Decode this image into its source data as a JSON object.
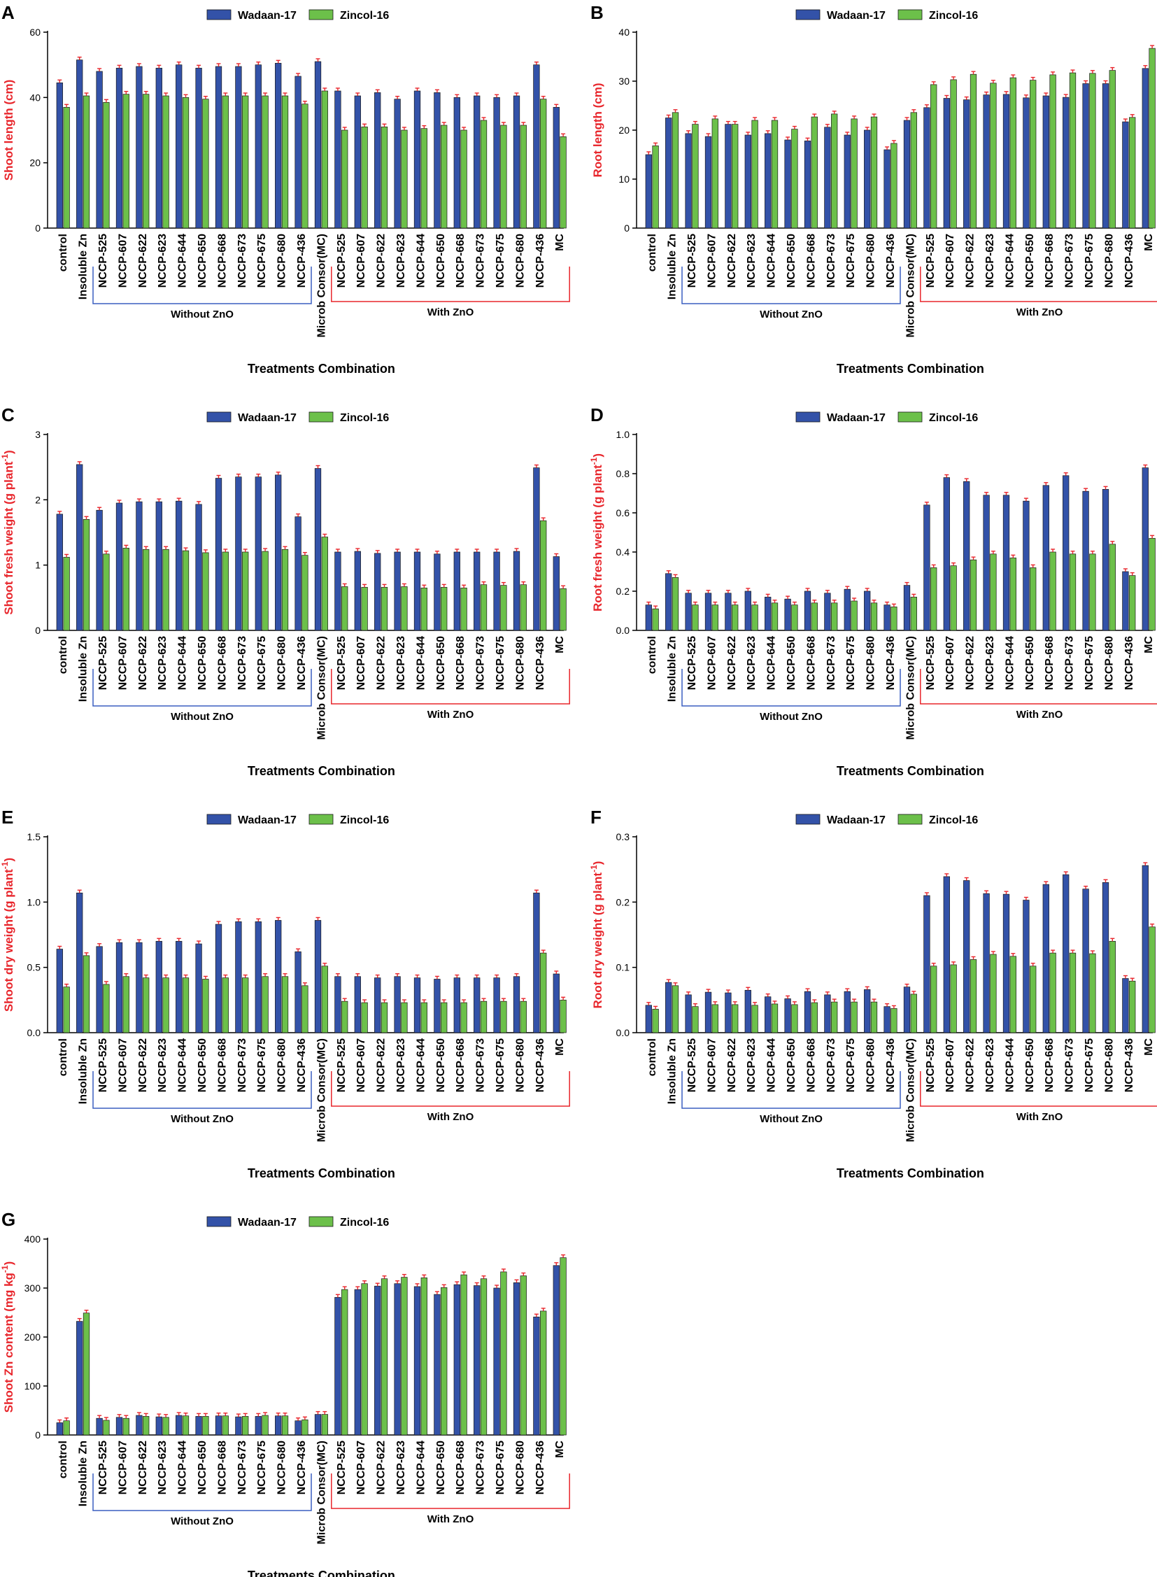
{
  "colors": {
    "series1": "#3352a8",
    "series2": "#6cc04a",
    "error": "#e8262c",
    "axis_label": "#e8262c",
    "without_bracket": "#3a5fc0",
    "with_bracket": "#e8262c"
  },
  "legend": [
    "Wadaan-17",
    "Zincol-16"
  ],
  "group_labels": {
    "without": "Without ZnO",
    "with": "With ZnO"
  },
  "x_axis_title": "Treatments Combination",
  "chart_data": [
    {
      "id": "A",
      "type": "bar",
      "ylabel": "Shoot length (cm)",
      "xlabel": "Treatments Combination",
      "ylim": [
        0,
        60
      ],
      "yticks": [
        "0",
        "20",
        "40",
        "60"
      ],
      "categories": [
        "control",
        "Insoluble Zn",
        "NCCP-525",
        "NCCP-607",
        "NCCP-622",
        "NCCP-623",
        "NCCP-644",
        "NCCP-650",
        "NCCP-668",
        "NCCP-673",
        "NCCP-675",
        "NCCP-680",
        "NCCP-436",
        "Microb Consor(MC)",
        "NCCP-525",
        "NCCP-607",
        "NCCP-622",
        "NCCP-623",
        "NCCP-644",
        "NCCP-650",
        "NCCP-668",
        "NCCP-673",
        "NCCP-675",
        "NCCP-680",
        "NCCP-436",
        "MC"
      ],
      "series": [
        {
          "name": "Wadaan-17",
          "values": [
            44.5,
            51.5,
            48,
            49,
            49.5,
            49,
            50,
            49,
            49.5,
            49.5,
            50,
            50.5,
            46.5,
            51,
            42,
            40.5,
            41.5,
            39.5,
            42,
            41.5,
            40,
            40.5,
            40,
            40.5,
            50,
            37
          ]
        },
        {
          "name": "Zincol-16",
          "values": [
            37,
            40.5,
            38.5,
            41,
            41,
            40.5,
            40,
            39.5,
            40.5,
            40.5,
            40.5,
            40.5,
            38,
            42,
            30,
            31,
            31,
            30,
            30.5,
            31.5,
            30,
            33,
            31.5,
            31.5,
            39.5,
            28
          ]
        }
      ]
    },
    {
      "id": "B",
      "type": "bar",
      "ylabel": "Root length (cm)",
      "xlabel": "Treatments Combination",
      "ylim": [
        0,
        40
      ],
      "yticks": [
        "0",
        "10",
        "20",
        "30",
        "40"
      ],
      "categories": [
        "control",
        "Insoluble Zn",
        "NCCP-525",
        "NCCP-607",
        "NCCP-622",
        "NCCP-623",
        "NCCP-644",
        "NCCP-650",
        "NCCP-668",
        "NCCP-673",
        "NCCP-675",
        "NCCP-680",
        "NCCP-436",
        "Microb Consor(MC)",
        "NCCP-525",
        "NCCP-607",
        "NCCP-622",
        "NCCP-623",
        "NCCP-644",
        "NCCP-650",
        "NCCP-668",
        "NCCP-673",
        "NCCP-675",
        "NCCP-680",
        "NCCP-436",
        "MC"
      ],
      "series": [
        {
          "name": "Wadaan-17",
          "values": [
            15,
            22.5,
            19.3,
            18.7,
            21.2,
            19,
            19.3,
            18,
            17.8,
            20.6,
            19,
            20,
            16,
            22,
            24.6,
            26.5,
            26.2,
            27.2,
            27.3,
            26.6,
            27,
            26.7,
            29.5,
            29.5,
            21.7,
            32.6
          ]
        },
        {
          "name": "Zincol-16",
          "values": [
            16.8,
            23.6,
            21.2,
            22.3,
            21.2,
            22,
            22,
            20.2,
            22.7,
            23.3,
            22.3,
            22.7,
            17.3,
            23.6,
            29.3,
            30.3,
            31.4,
            29.6,
            30.7,
            30.2,
            31.3,
            31.7,
            31.6,
            32.2,
            22.6,
            36.7
          ]
        }
      ]
    },
    {
      "id": "C",
      "type": "bar",
      "ylabel": "Shoot fresh weight (g plant",
      "ylabel_sup": "-1",
      "ylabel_end": ")",
      "xlabel": "Treatments Combination",
      "ylim": [
        0,
        3
      ],
      "yticks": [
        "0",
        "1",
        "2",
        "3"
      ],
      "categories": [
        "control",
        "Insoluble Zn",
        "NCCP-525",
        "NCCP-607",
        "NCCP-622",
        "NCCP-623",
        "NCCP-644",
        "NCCP-650",
        "NCCP-668",
        "NCCP-673",
        "NCCP-675",
        "NCCP-680",
        "NCCP-436",
        "Microb Consor(MC)",
        "NCCP-525",
        "NCCP-607",
        "NCCP-622",
        "NCCP-623",
        "NCCP-644",
        "NCCP-650",
        "NCCP-668",
        "NCCP-673",
        "NCCP-675",
        "NCCP-680",
        "NCCP-436",
        "MC"
      ],
      "series": [
        {
          "name": "Wadaan-17",
          "values": [
            1.78,
            2.54,
            1.84,
            1.95,
            1.97,
            1.97,
            1.98,
            1.93,
            2.33,
            2.35,
            2.35,
            2.38,
            1.74,
            2.48,
            1.2,
            1.21,
            1.18,
            1.2,
            1.2,
            1.17,
            1.2,
            1.2,
            1.2,
            1.21,
            2.49,
            1.13
          ]
        },
        {
          "name": "Zincol-16",
          "values": [
            1.12,
            1.7,
            1.17,
            1.26,
            1.24,
            1.24,
            1.22,
            1.19,
            1.2,
            1.2,
            1.21,
            1.24,
            1.15,
            1.43,
            0.67,
            0.66,
            0.66,
            0.67,
            0.65,
            0.66,
            0.65,
            0.7,
            0.69,
            0.7,
            1.68,
            0.64
          ]
        }
      ]
    },
    {
      "id": "D",
      "type": "bar",
      "ylabel": "Root fresh weight (g plant",
      "ylabel_sup": "-1",
      "ylabel_end": ")",
      "xlabel": "Treatments Combination",
      "ylim": [
        0,
        1.0
      ],
      "yticks": [
        "0.0",
        "0.2",
        "0.4",
        "0.6",
        "0.8",
        "1.0"
      ],
      "categories": [
        "control",
        "Insoluble Zn",
        "NCCP-525",
        "NCCP-607",
        "NCCP-622",
        "NCCP-623",
        "NCCP-644",
        "NCCP-650",
        "NCCP-668",
        "NCCP-673",
        "NCCP-675",
        "NCCP-680",
        "NCCP-436",
        "Microb Consor(MC)",
        "NCCP-525",
        "NCCP-607",
        "NCCP-622",
        "NCCP-623",
        "NCCP-644",
        "NCCP-650",
        "NCCP-668",
        "NCCP-673",
        "NCCP-675",
        "NCCP-680",
        "NCCP-436",
        "MC"
      ],
      "series": [
        {
          "name": "Wadaan-17",
          "values": [
            0.13,
            0.29,
            0.19,
            0.19,
            0.19,
            0.2,
            0.17,
            0.16,
            0.2,
            0.19,
            0.21,
            0.2,
            0.13,
            0.23,
            0.64,
            0.78,
            0.76,
            0.69,
            0.69,
            0.66,
            0.74,
            0.79,
            0.71,
            0.72,
            0.3,
            0.83
          ]
        },
        {
          "name": "Zincol-16",
          "values": [
            0.11,
            0.27,
            0.13,
            0.13,
            0.13,
            0.13,
            0.14,
            0.13,
            0.14,
            0.14,
            0.15,
            0.14,
            0.12,
            0.17,
            0.32,
            0.33,
            0.36,
            0.39,
            0.37,
            0.32,
            0.4,
            0.39,
            0.39,
            0.44,
            0.28,
            0.47
          ]
        }
      ]
    },
    {
      "id": "E",
      "type": "bar",
      "ylabel": "Shoot dry weight (g plant",
      "ylabel_sup": "-1",
      "ylabel_end": ")",
      "xlabel": "Treatments Combination",
      "ylim": [
        0,
        1.5
      ],
      "yticks": [
        "0.0",
        "0.5",
        "1.0",
        "1.5"
      ],
      "categories": [
        "control",
        "Insoluble Zn",
        "NCCP-525",
        "NCCP-607",
        "NCCP-622",
        "NCCP-623",
        "NCCP-644",
        "NCCP-650",
        "NCCP-668",
        "NCCP-673",
        "NCCP-675",
        "NCCP-680",
        "NCCP-436",
        "Microb Consor(MC)",
        "NCCP-525",
        "NCCP-607",
        "NCCP-622",
        "NCCP-623",
        "NCCP-644",
        "NCCP-650",
        "NCCP-668",
        "NCCP-673",
        "NCCP-675",
        "NCCP-680",
        "NCCP-436",
        "MC"
      ],
      "series": [
        {
          "name": "Wadaan-17",
          "values": [
            0.64,
            1.07,
            0.66,
            0.69,
            0.69,
            0.7,
            0.7,
            0.68,
            0.83,
            0.85,
            0.85,
            0.86,
            0.62,
            0.86,
            0.43,
            0.43,
            0.42,
            0.43,
            0.42,
            0.41,
            0.42,
            0.42,
            0.42,
            0.43,
            1.07,
            0.45
          ]
        },
        {
          "name": "Zincol-16",
          "values": [
            0.35,
            0.59,
            0.37,
            0.43,
            0.42,
            0.42,
            0.42,
            0.41,
            0.42,
            0.42,
            0.43,
            0.43,
            0.36,
            0.51,
            0.24,
            0.23,
            0.23,
            0.23,
            0.23,
            0.23,
            0.23,
            0.24,
            0.24,
            0.24,
            0.61,
            0.25
          ]
        }
      ]
    },
    {
      "id": "F",
      "type": "bar",
      "ylabel": "Root dry weight (g plant",
      "ylabel_sup": "-1",
      "ylabel_end": ")",
      "xlabel": "Treatments Combination",
      "ylim": [
        0,
        0.3
      ],
      "yticks": [
        "0.0",
        "0.1",
        "0.2",
        "0.3"
      ],
      "categories": [
        "control",
        "Insoluble Zn",
        "NCCP-525",
        "NCCP-607",
        "NCCP-622",
        "NCCP-623",
        "NCCP-644",
        "NCCP-650",
        "NCCP-668",
        "NCCP-673",
        "NCCP-675",
        "NCCP-680",
        "NCCP-436",
        "Microb Consor(MC)",
        "NCCP-525",
        "NCCP-607",
        "NCCP-622",
        "NCCP-623",
        "NCCP-644",
        "NCCP-650",
        "NCCP-668",
        "NCCP-673",
        "NCCP-675",
        "NCCP-680",
        "NCCP-436",
        "MC"
      ],
      "series": [
        {
          "name": "Wadaan-17",
          "values": [
            0.042,
            0.077,
            0.058,
            0.062,
            0.061,
            0.065,
            0.055,
            0.052,
            0.063,
            0.058,
            0.063,
            0.066,
            0.04,
            0.07,
            0.21,
            0.239,
            0.233,
            0.213,
            0.212,
            0.203,
            0.227,
            0.242,
            0.22,
            0.23,
            0.083,
            0.256
          ]
        },
        {
          "name": "Zincol-16",
          "values": [
            0.036,
            0.072,
            0.04,
            0.043,
            0.043,
            0.042,
            0.044,
            0.043,
            0.046,
            0.047,
            0.047,
            0.047,
            0.037,
            0.059,
            0.102,
            0.104,
            0.112,
            0.12,
            0.117,
            0.102,
            0.122,
            0.122,
            0.121,
            0.14,
            0.079,
            0.162
          ]
        }
      ]
    },
    {
      "id": "G",
      "type": "bar",
      "ylabel": "Shoot Zn content (mg kg",
      "ylabel_sup": "-1",
      "ylabel_end": ")",
      "xlabel": "Treatments Combination",
      "ylim": [
        0,
        400
      ],
      "yticks": [
        "0",
        "100",
        "200",
        "300",
        "400"
      ],
      "categories": [
        "control",
        "Insoluble Zn",
        "NCCP-525",
        "NCCP-607",
        "NCCP-622",
        "NCCP-623",
        "NCCP-644",
        "NCCP-650",
        "NCCP-668",
        "NCCP-673",
        "NCCP-675",
        "NCCP-680",
        "NCCP-436",
        "Microb Consor(MC)",
        "NCCP-525",
        "NCCP-607",
        "NCCP-622",
        "NCCP-623",
        "NCCP-644",
        "NCCP-650",
        "NCCP-668",
        "NCCP-673",
        "NCCP-675",
        "NCCP-680",
        "NCCP-436",
        "MC"
      ],
      "series": [
        {
          "name": "Wadaan-17",
          "values": [
            25,
            232,
            34,
            36,
            40,
            37,
            40,
            38,
            39,
            37,
            38,
            39,
            29,
            42,
            281,
            297,
            304,
            309,
            303,
            287,
            307,
            305,
            300,
            311,
            241,
            346
          ]
        },
        {
          "name": "Zincol-16",
          "values": [
            29,
            249,
            30,
            34,
            38,
            36,
            39,
            38,
            39,
            38,
            40,
            39,
            31,
            42,
            297,
            309,
            319,
            322,
            321,
            301,
            327,
            319,
            333,
            325,
            253,
            362
          ]
        }
      ]
    }
  ]
}
